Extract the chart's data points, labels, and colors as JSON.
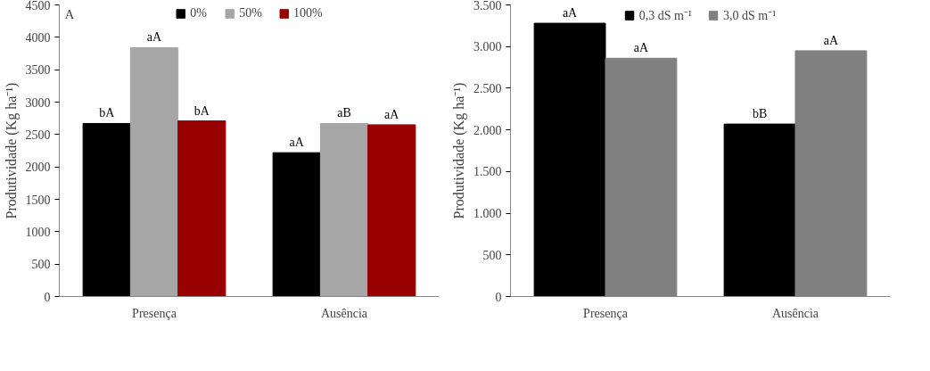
{
  "chart_data": [
    {
      "type": "bar",
      "ylabel": "Produtividade (Kg ha⁻¹)",
      "annotations": [
        "A"
      ],
      "categories": [
        "Presença",
        "Ausência"
      ],
      "series": [
        {
          "name": "0%",
          "color": "#000000",
          "values": [
            2670,
            2220
          ],
          "value_labels": [
            "bA",
            "aA"
          ]
        },
        {
          "name": "50%",
          "color": "#a6a6a6",
          "values": [
            3840,
            2670
          ],
          "value_labels": [
            "aA",
            "aB"
          ]
        },
        {
          "name": "100%",
          "color": "#990000",
          "values": [
            2710,
            2650
          ],
          "value_labels": [
            "bA",
            "aA"
          ]
        }
      ],
      "ylim": [
        0,
        4500
      ],
      "yticks": [
        0,
        500,
        1000,
        1500,
        2000,
        2500,
        3000,
        3500,
        4000,
        4500
      ],
      "grid": false,
      "legend": "top"
    },
    {
      "type": "bar",
      "ylabel": "Produtividade (Kg ha⁻¹)",
      "categories": [
        "Presença",
        "Ausência"
      ],
      "series": [
        {
          "name": "0,3 dS m⁻¹",
          "color": "#000000",
          "values": [
            3280,
            2070
          ],
          "value_labels": [
            "aA",
            "bB"
          ]
        },
        {
          "name": "3,0 dS m⁻¹",
          "color": "#808080",
          "values": [
            2860,
            2950
          ],
          "value_labels": [
            "aA",
            "aA"
          ]
        }
      ],
      "ylim": [
        0,
        3500
      ],
      "yticks": [
        0,
        {
          "value": 500,
          "label": "500"
        },
        {
          "value": 1000,
          "label": "1.000"
        },
        {
          "value": 1500,
          "label": "1.500"
        },
        {
          "value": 2000,
          "label": "2.000"
        },
        {
          "value": 2500,
          "label": "2.500"
        },
        {
          "value": 3000,
          "label": "3.000"
        },
        {
          "value": 3500,
          "label": "3.500"
        }
      ],
      "grid": false,
      "legend": "top"
    }
  ]
}
